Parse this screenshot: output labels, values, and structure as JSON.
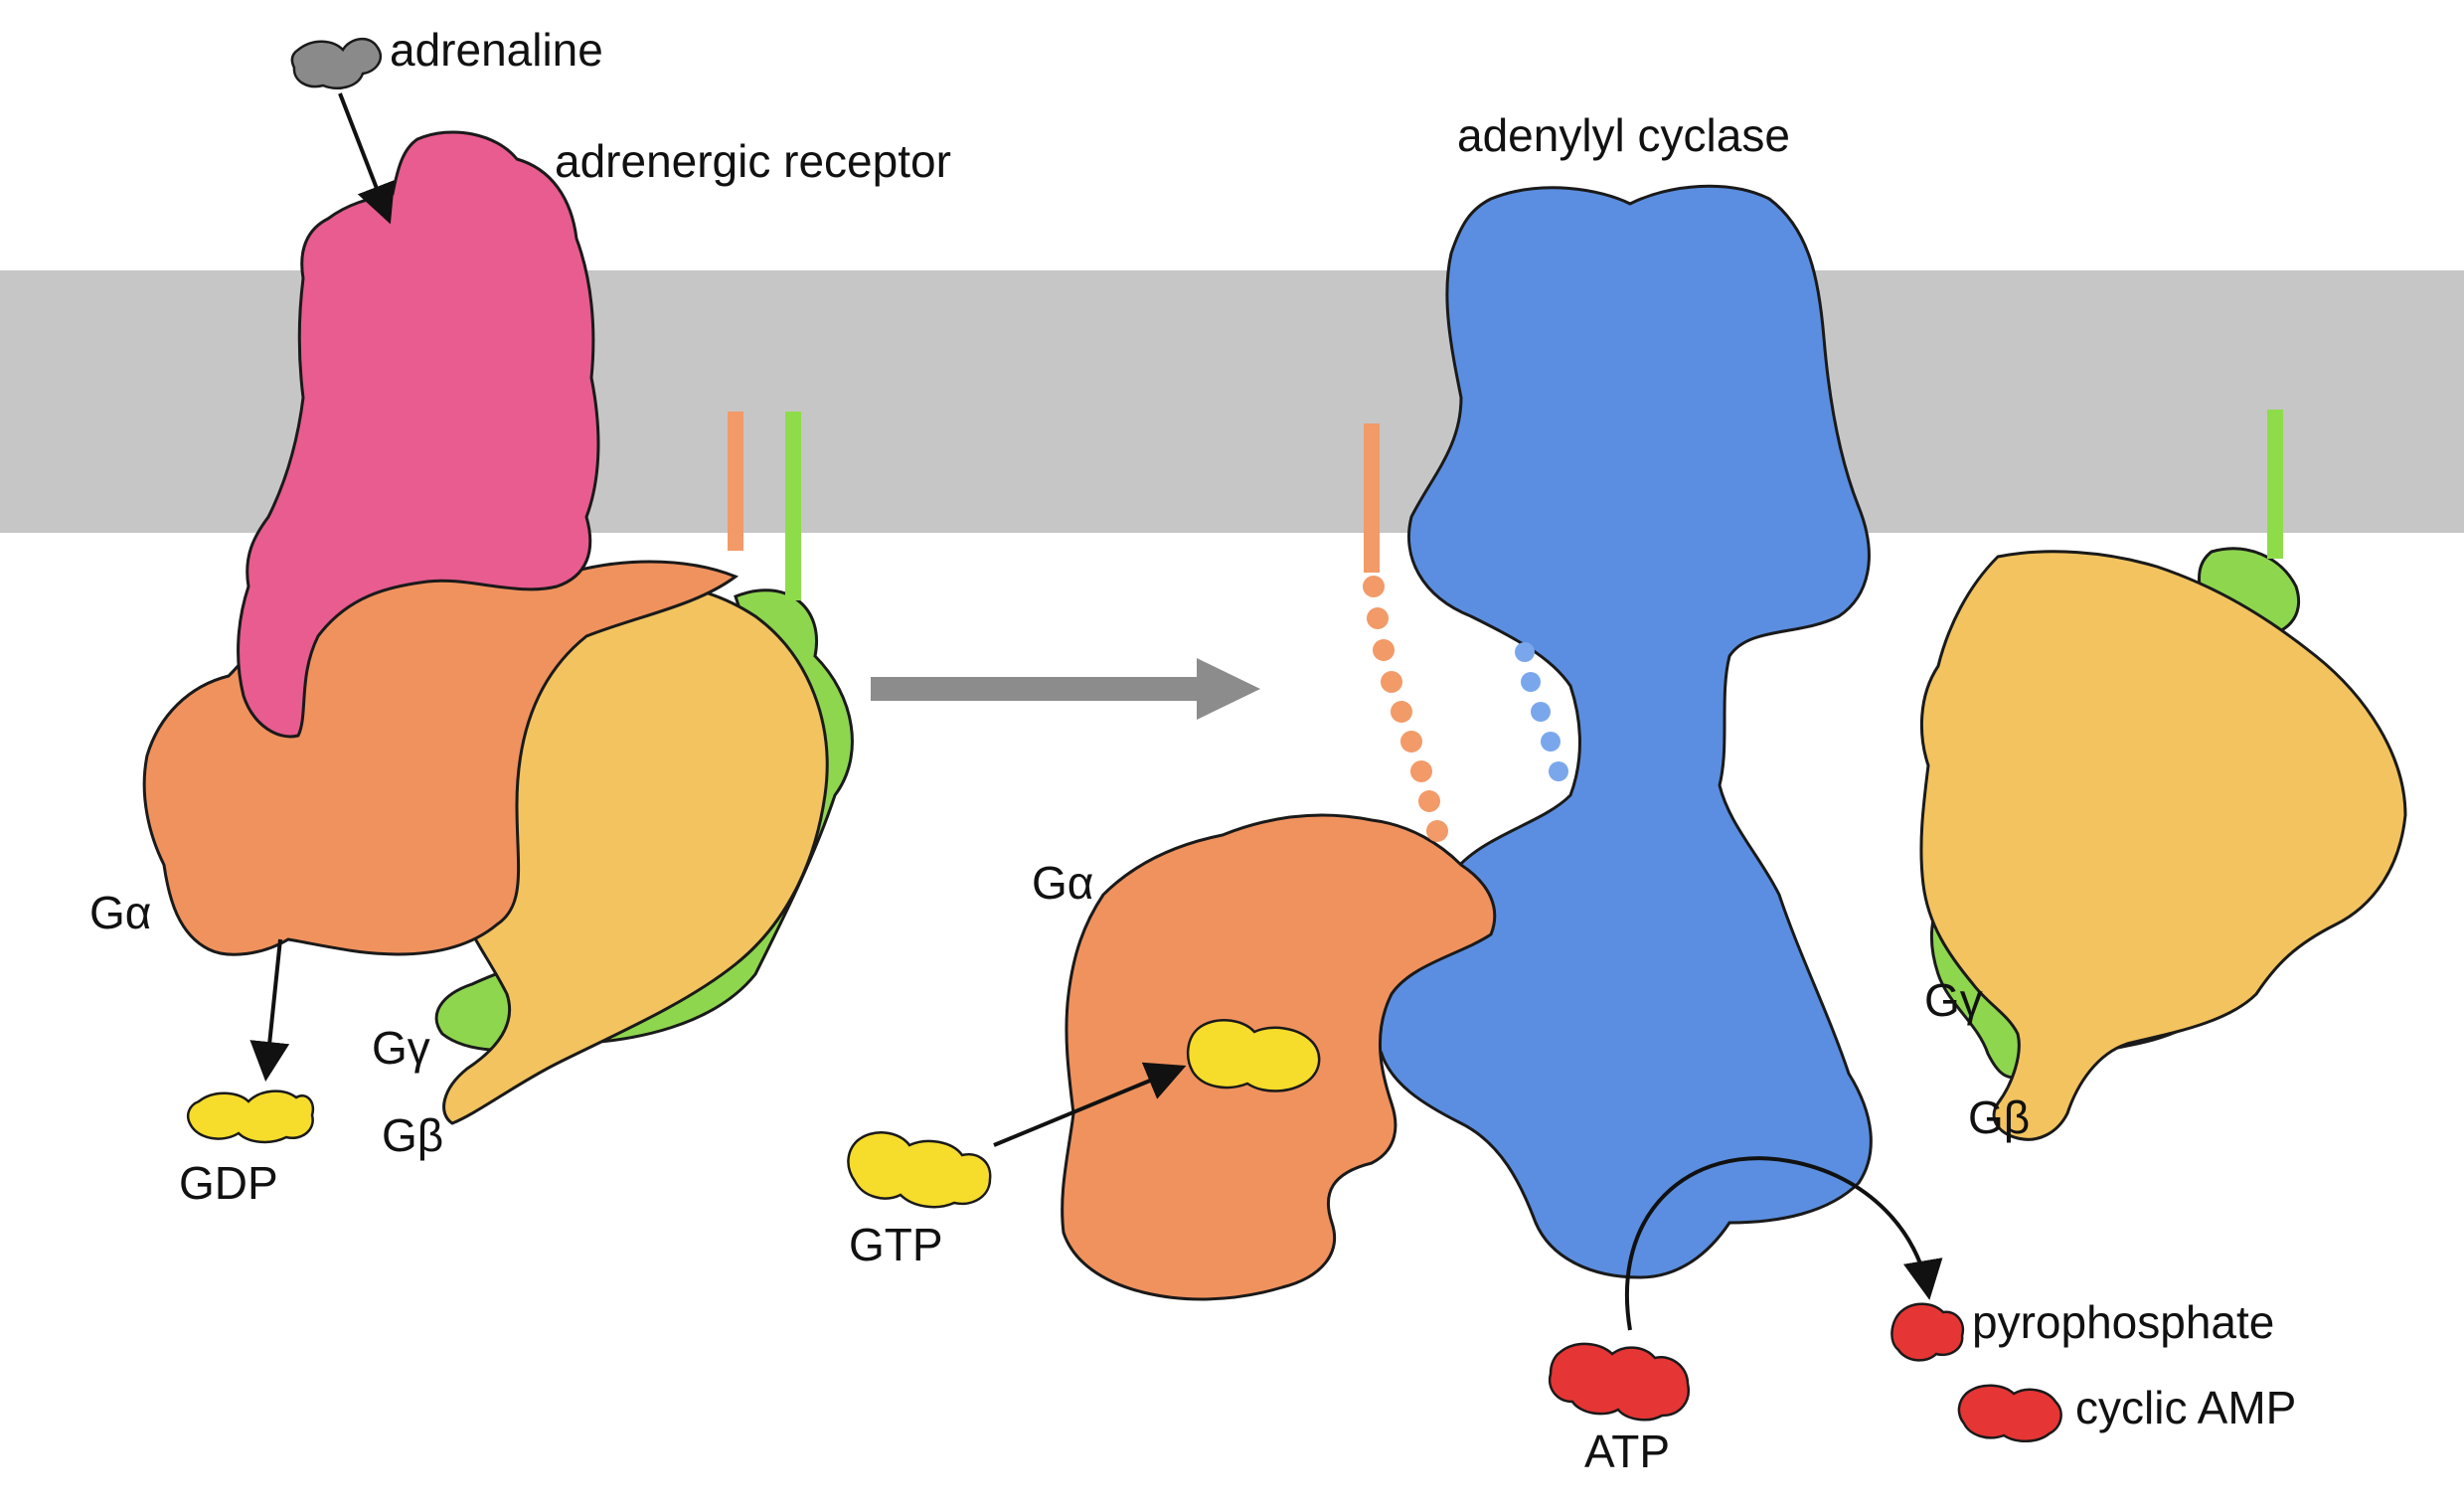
{
  "labels": {
    "adrenaline": "adrenaline",
    "adrenergic_receptor": "adrenergic receptor",
    "adenylyl_cyclase": "adenylyl cyclase",
    "g_alpha_left": "Gα",
    "g_alpha_center": "Gα",
    "g_gamma_left": "Gγ",
    "g_beta_left": "Gβ",
    "g_gamma_right": "Gγ",
    "g_beta_right": "Gβ",
    "gdp": "GDP",
    "gtp": "GTP",
    "atp": "ATP",
    "pyrophosphate": "pyrophosphate",
    "cyclic_amp": "cyclic AMP"
  },
  "colors": {
    "membrane": "#c6c6c6",
    "receptor": "#e85c8f",
    "g_alpha": "#f0925e",
    "g_beta": "#f2c35f",
    "g_gamma": "#8fd64f",
    "adenylyl_cyclase": "#5b8ee0",
    "nucleotide_yellow": "#f6dc2b",
    "nucleotide_red": "#e63535",
    "adrenaline": "#8a8a8a",
    "arrow_gray": "#8c8c8c",
    "anchor_orange": "#f29a68",
    "anchor_green": "#8fdc4a",
    "dots_blue": "#7aa7ec"
  }
}
